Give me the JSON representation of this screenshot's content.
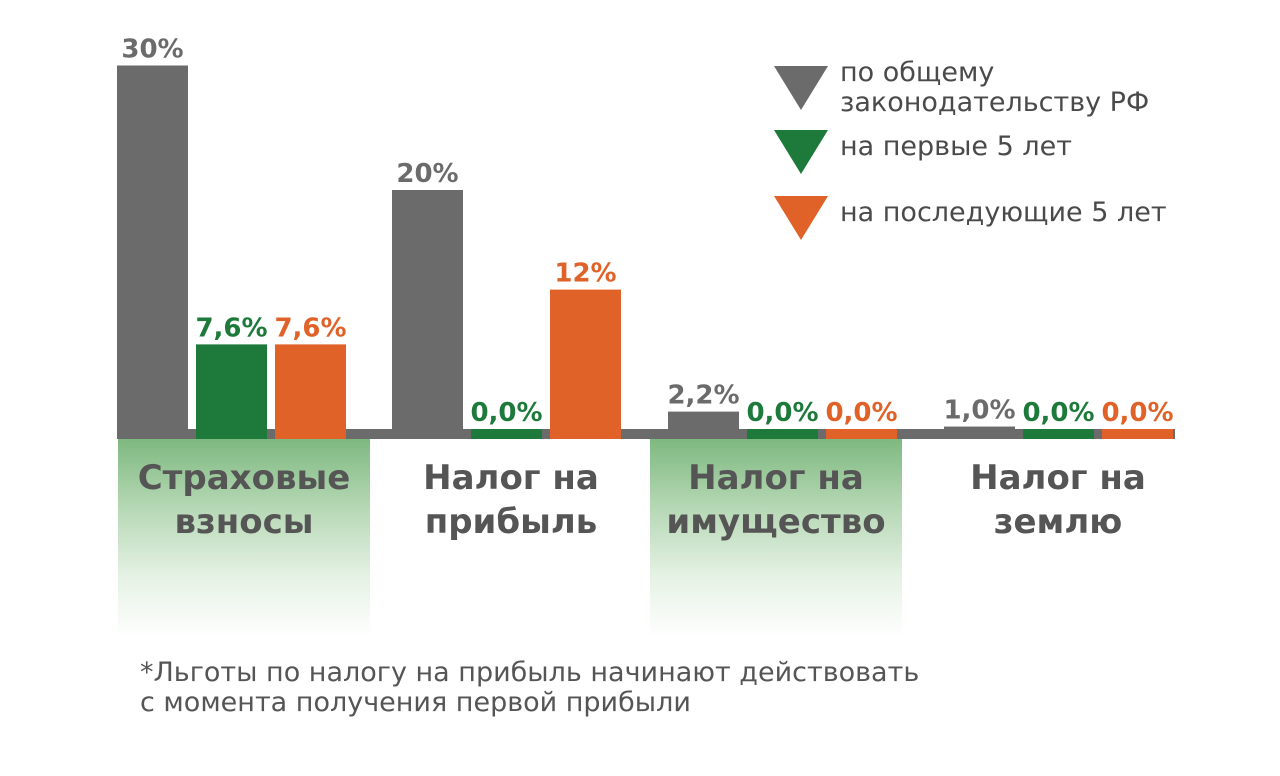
{
  "chart_data": {
    "type": "bar",
    "categories": [
      "Страховые\nвзносы",
      "Налог на\nприбыль",
      "Налог на\nимущество",
      "Налог на\nземлю"
    ],
    "series": [
      {
        "name": "по общему\nзаконодательству РФ",
        "color": "#6b6b6b",
        "values": [
          30,
          20,
          2.2,
          1.0
        ],
        "labels": [
          "30%",
          "20%",
          "2,2%",
          "1,0%"
        ]
      },
      {
        "name": "на первые 5 лет",
        "color": "#1e7a3a",
        "values": [
          7.6,
          0.0,
          0.0,
          0.0
        ],
        "labels": [
          "7,6%",
          "0,0%",
          "0,0%",
          "0,0%"
        ]
      },
      {
        "name": "на последующие 5 лет",
        "color": "#e06228",
        "values": [
          7.6,
          12,
          0.0,
          0.0
        ],
        "labels": [
          "7,6%",
          "12%",
          "0,0%",
          "0,0%"
        ]
      }
    ],
    "ylim": [
      0,
      30
    ],
    "grid": false,
    "legend_position": "top-right",
    "highlighted_categories": [
      0,
      2
    ]
  },
  "footnote": "*Льготы по налогу на прибыль начинают действовать\nс момента получения первой прибыли"
}
